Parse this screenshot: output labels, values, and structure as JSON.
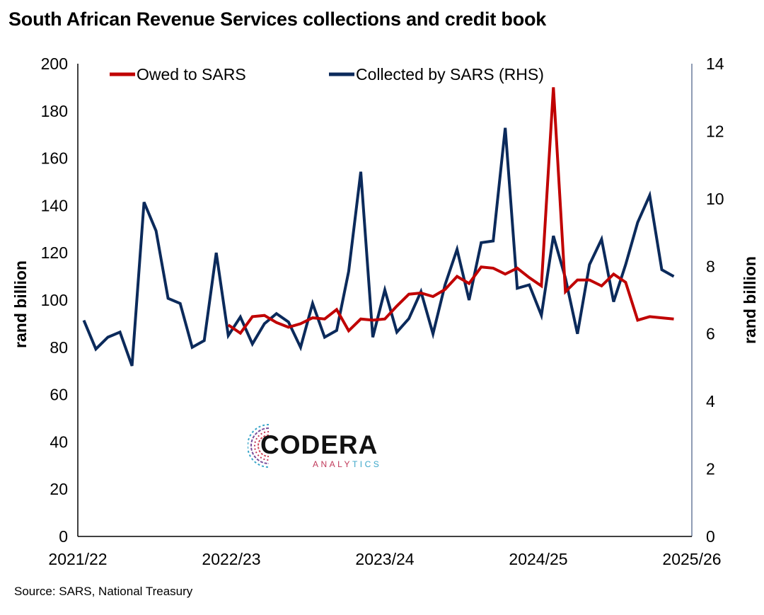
{
  "title": "South African Revenue Services collections and credit book",
  "source": "Source: SARS, National Treasury",
  "logo": {
    "name": "CODERA",
    "sub_left": "ANALY",
    "sub_right": "TICS"
  },
  "colors": {
    "owed": "#c00000",
    "collected": "#0b2a5b",
    "axis": "#000000",
    "rhs_axis": "#1f3a68"
  },
  "chart_data": {
    "type": "line",
    "xlabel": "",
    "x_ticks": [
      "2021/22",
      "2022/23",
      "2023/24",
      "2024/25",
      "2025/26"
    ],
    "ylabel": "rand billion",
    "ylim": [
      0,
      200
    ],
    "y_ticks": [
      0,
      20,
      40,
      60,
      80,
      100,
      120,
      140,
      160,
      180,
      200
    ],
    "y2label": "rand billion",
    "y2lim": [
      0,
      14
    ],
    "y2_ticks": [
      0,
      2,
      4,
      6,
      8,
      10,
      12,
      14
    ],
    "legend_position": "top",
    "grid": false,
    "months_total": 51,
    "series": [
      {
        "name": "Owed to SARS",
        "axis": "left",
        "start_month": 12,
        "values": [
          89.5,
          86,
          93,
          93.5,
          90.5,
          88.5,
          90,
          92.5,
          92,
          96,
          87,
          92,
          91.5,
          92,
          97.5,
          102.5,
          103,
          101.5,
          104.5,
          110,
          107,
          114,
          113.5,
          111,
          113.5,
          109.5,
          106,
          190,
          103.5,
          108.5,
          108.5,
          106,
          111,
          107.5,
          91.5,
          93,
          92.5,
          92
        ]
      },
      {
        "name": "Collected by SARS (RHS)",
        "axis": "right",
        "start_month": 0,
        "values": [
          6.4,
          5.55,
          5.9,
          6.05,
          5.05,
          9.9,
          9.05,
          7.05,
          6.9,
          5.6,
          5.8,
          8.4,
          5.95,
          6.5,
          5.7,
          6.3,
          6.6,
          6.35,
          5.6,
          6.9,
          5.9,
          6.1,
          7.85,
          10.8,
          5.9,
          7.3,
          6.05,
          6.45,
          7.25,
          6.0,
          7.45,
          8.5,
          7.0,
          8.7,
          8.75,
          12.1,
          7.35,
          7.45,
          6.55,
          8.9,
          7.65,
          6.0,
          8.05,
          8.8,
          6.95,
          8.05,
          9.3,
          10.1,
          7.9,
          7.7
        ]
      }
    ]
  }
}
